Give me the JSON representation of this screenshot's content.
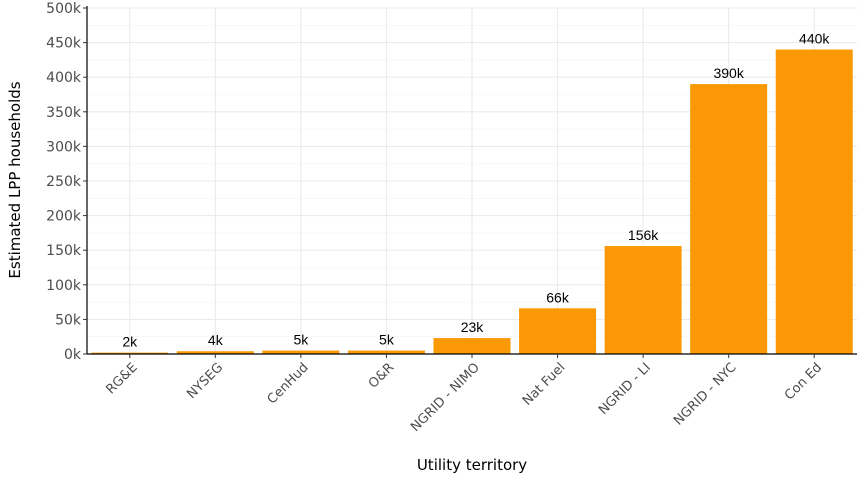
{
  "chart_data": {
    "type": "bar",
    "xlabel": "Utility territory",
    "ylabel": "Estimated LPP households",
    "categories": [
      "RG&E",
      "NYSEG",
      "CenHud",
      "O&R",
      "NGRID - NIMO",
      "Nat Fuel",
      "NGRID - LI",
      "NGRID - NYC",
      "Con Ed"
    ],
    "values": [
      2000,
      4000,
      5000,
      5000,
      23000,
      66000,
      156000,
      390000,
      440000
    ],
    "data_labels": [
      "2k",
      "4k",
      "5k",
      "5k",
      "23k",
      "66k",
      "156k",
      "390k",
      "440k"
    ],
    "ylim": [
      0,
      500000
    ],
    "y_ticks": [
      0,
      50000,
      100000,
      150000,
      200000,
      250000,
      300000,
      350000,
      400000,
      450000,
      500000
    ],
    "y_tick_labels": [
      "0k",
      "50k",
      "100k",
      "150k",
      "200k",
      "250k",
      "300k",
      "350k",
      "400k",
      "450k",
      "500k"
    ],
    "grid": true,
    "legend": "none",
    "bar_color": "#fa9805"
  }
}
